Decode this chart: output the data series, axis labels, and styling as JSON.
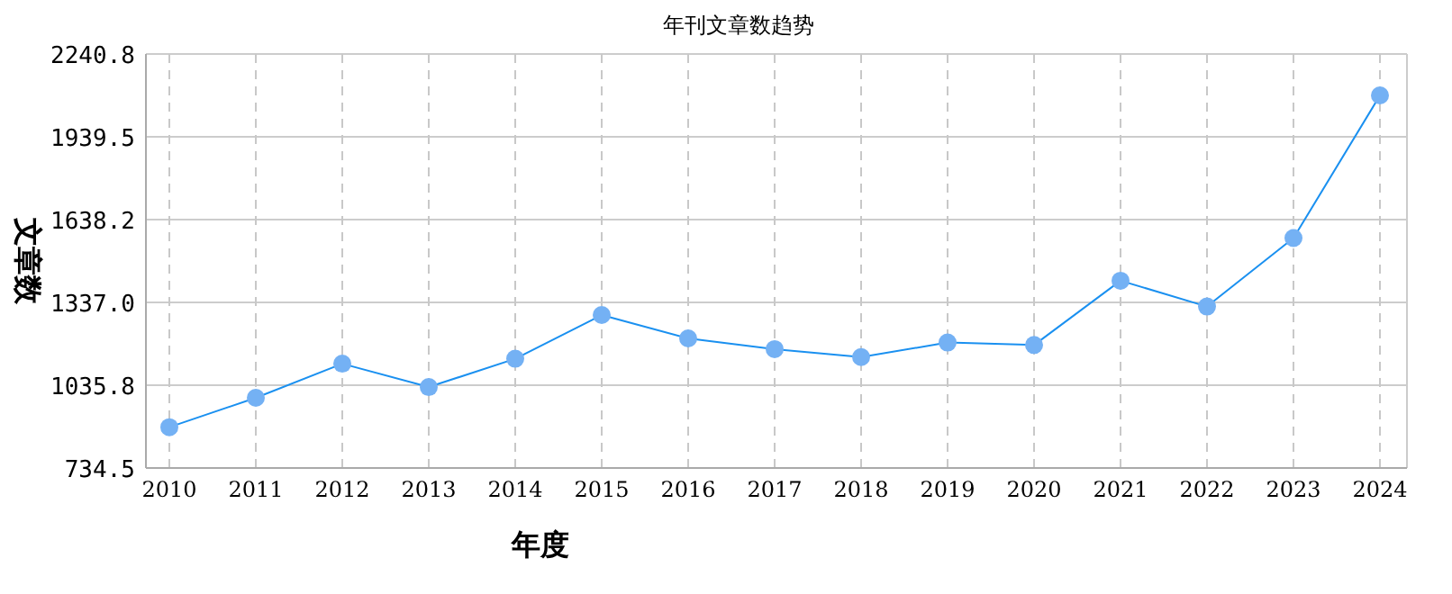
{
  "chart_data": {
    "type": "line",
    "title": "年刊文章数趋势",
    "xlabel": "年度",
    "ylabel": "文章数",
    "categories": [
      "2010",
      "2011",
      "2012",
      "2013",
      "2014",
      "2015",
      "2016",
      "2017",
      "2018",
      "2019",
      "2020",
      "2021",
      "2022",
      "2023",
      "2024"
    ],
    "series": [
      {
        "color": "#1a90f0",
        "values": [
          883,
          990,
          1114,
          1029,
          1132,
          1291,
          1206,
          1167,
          1138,
          1191,
          1182,
          1416,
          1322,
          1571,
          2090
        ]
      }
    ],
    "ylim": [
      734.5,
      2240.8
    ],
    "yticks": [
      {
        "value": 734.5,
        "label": "734.5"
      },
      {
        "value": 1035.8,
        "label": "1035.8"
      },
      {
        "value": 1337.0,
        "label": "1337.0"
      },
      {
        "value": 1638.2,
        "label": "1638.2"
      },
      {
        "value": 1939.5,
        "label": "1939.5"
      },
      {
        "value": 2240.8,
        "label": "2240.8"
      }
    ],
    "grid": true,
    "marker": "circle",
    "line_style": "solid"
  }
}
